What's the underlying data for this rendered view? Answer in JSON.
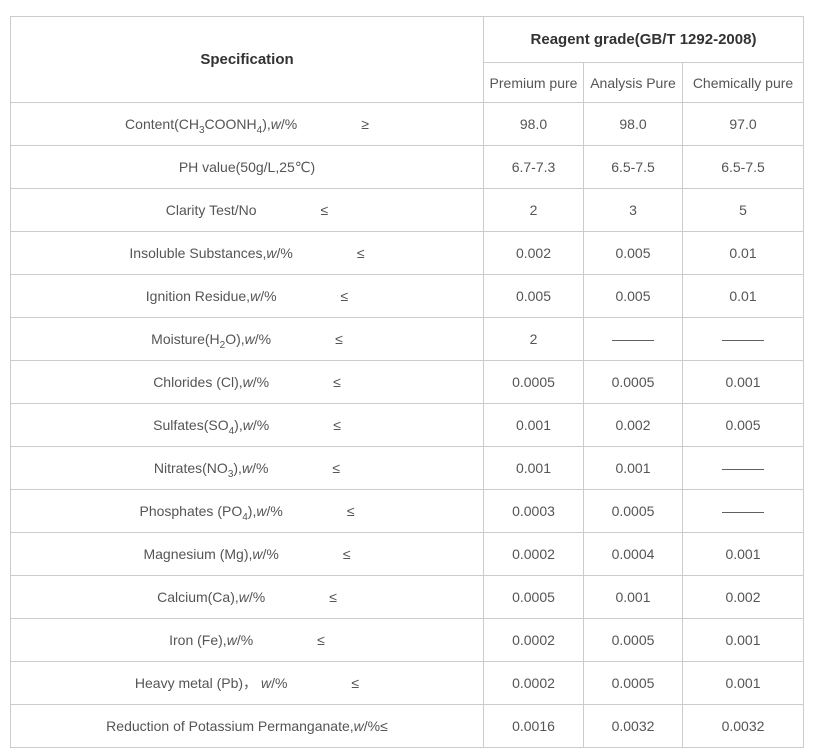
{
  "table": {
    "header": {
      "specification": "Specification",
      "reagent_grade": "Reagent grade(GB/T 1292-2008)",
      "grades": [
        "Premium pure",
        "Analysis Pure",
        "Chemically pure"
      ]
    },
    "rows": [
      {
        "name": "Content(CH₃COONH₄),w/%",
        "limit": "≥",
        "values": [
          "98.0",
          "98.0",
          "97.0"
        ]
      },
      {
        "name": "PH value(50g/L,25℃)",
        "limit": "",
        "values": [
          "6.7-7.3",
          "6.5-7.5",
          "6.5-7.5"
        ]
      },
      {
        "name": "Clarity Test/No",
        "limit": "≤",
        "values": [
          "2",
          "3",
          "5"
        ]
      },
      {
        "name": "Insoluble Substances,w/%",
        "limit": "≤",
        "values": [
          "0.002",
          "0.005",
          "0.01"
        ]
      },
      {
        "name": "Ignition Residue,w/%",
        "limit": "≤",
        "values": [
          "0.005",
          "0.005",
          "0.01"
        ]
      },
      {
        "name": "Moisture(H₂O),w/%",
        "limit": "≤",
        "values": [
          "2",
          "———",
          "———"
        ]
      },
      {
        "name": "Chlorides (Cl),w/%",
        "limit": "≤",
        "values": [
          "0.0005",
          "0.0005",
          "0.001"
        ]
      },
      {
        "name": "Sulfates(SO₄),w/%",
        "limit": "≤",
        "values": [
          "0.001",
          "0.002",
          "0.005"
        ]
      },
      {
        "name": "Nitrates(NO₃),w/%",
        "limit": "≤",
        "values": [
          "0.001",
          "0.001",
          "———"
        ]
      },
      {
        "name": "Phosphates (PO₄),w/%",
        "limit": "≤",
        "values": [
          "0.0003",
          "0.0005",
          "———"
        ]
      },
      {
        "name": "Magnesium (Mg),w/%",
        "limit": "≤",
        "values": [
          "0.0002",
          "0.0004",
          "0.001"
        ]
      },
      {
        "name": "Calcium(Ca),w/%",
        "limit": "≤",
        "values": [
          "0.0005",
          "0.001",
          "0.002"
        ]
      },
      {
        "name": "Iron (Fe),w/%",
        "limit": "≤",
        "values": [
          "0.0002",
          "0.0005",
          "0.001"
        ]
      },
      {
        "name": "Heavy metal (Pb)， w/%",
        "limit": "≤",
        "values": [
          "0.0002",
          "0.0005",
          "0.001"
        ]
      },
      {
        "name": "Reduction of Potassium Permanganate,w/%≤",
        "limit": "",
        "values": [
          "0.0016",
          "0.0032",
          "0.0032"
        ]
      }
    ],
    "colors": {
      "border": "#cccccc",
      "body_text": "#555555",
      "header_text": "#333333",
      "background": "#ffffff"
    }
  }
}
